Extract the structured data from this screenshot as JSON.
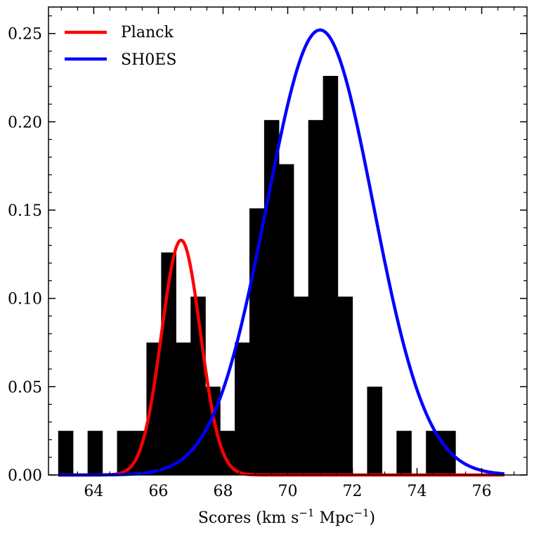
{
  "chart_data": {
    "type": "histogram",
    "title": "",
    "xlabel": "Scores (km s",
    "xlabel_sup1": "−1",
    "xlabel_mid": " Mpc",
    "xlabel_sup2": "−1",
    "xlabel_end": ")",
    "ylabel": "",
    "xlim": [
      62.6,
      77.4
    ],
    "ylim": [
      0,
      0.265
    ],
    "x_ticks": [
      64,
      66,
      68,
      70,
      72,
      74,
      76
    ],
    "x_tick_labels": [
      "64",
      "66",
      "68",
      "70",
      "72",
      "74",
      "76"
    ],
    "y_ticks": [
      0.0,
      0.05,
      0.1,
      0.15,
      0.2,
      0.25
    ],
    "y_tick_labels": [
      "0.00",
      "0.05",
      "0.10",
      "0.15",
      "0.20",
      "0.25"
    ],
    "histogram": {
      "bin_start": 62.9,
      "bin_width": 0.455,
      "density": [
        0.025,
        0.0,
        0.025,
        0.0,
        0.025,
        0.025,
        0.075,
        0.126,
        0.075,
        0.101,
        0.05,
        0.025,
        0.075,
        0.151,
        0.201,
        0.176,
        0.101,
        0.201,
        0.226,
        0.101,
        0.0,
        0.05,
        0.0,
        0.025,
        0.0,
        0.025,
        0.025
      ],
      "color": "#000000"
    },
    "series": [
      {
        "name": "Planck",
        "kind": "gaussian",
        "mean": 66.7,
        "sigma": 0.6,
        "peak": 0.133,
        "x_range": [
          62.9,
          76.7
        ],
        "color": "#ff0000"
      },
      {
        "name": "SH0ES",
        "kind": "gaussian",
        "mean": 71.0,
        "sigma": 1.65,
        "peak": 0.252,
        "x_range": [
          62.9,
          76.7
        ],
        "color": "#0000ff"
      }
    ],
    "legend": {
      "position": "top-left",
      "entries": [
        "Planck",
        "SH0ES"
      ]
    }
  }
}
